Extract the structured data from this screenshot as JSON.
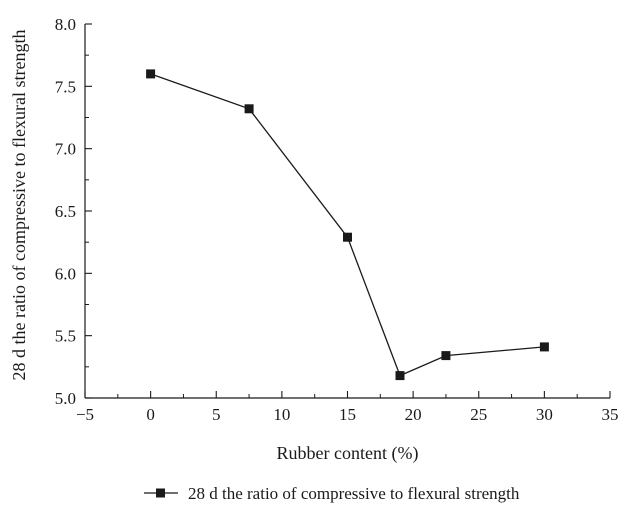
{
  "chart_data": {
    "type": "line",
    "xlabel": "Rubber content (%)",
    "ylabel": "28 d the ratio of compressive to flexural strength",
    "xlim": [
      -5,
      35
    ],
    "ylim": [
      5.0,
      8.0
    ],
    "x_ticks": [
      -5,
      0,
      5,
      10,
      15,
      20,
      25,
      30,
      35
    ],
    "x_tick_labels": [
      "−5",
      "0",
      "5",
      "10",
      "15",
      "20",
      "25",
      "30",
      "35"
    ],
    "y_ticks": [
      5.0,
      5.5,
      6.0,
      6.5,
      7.0,
      7.5,
      8.0
    ],
    "y_tick_labels": [
      "5.0",
      "5.5",
      "6.0",
      "6.5",
      "7.0",
      "7.5",
      "8.0"
    ],
    "grid": false,
    "legend_position": "bottom-center",
    "series": [
      {
        "name": "28 d the ratio of compressive to flexural strength",
        "marker": "square",
        "color": "#1a1a1a",
        "x": [
          0,
          7.5,
          15,
          19,
          22.5,
          30
        ],
        "y": [
          7.6,
          7.32,
          6.29,
          5.18,
          5.34,
          5.41
        ]
      }
    ]
  }
}
